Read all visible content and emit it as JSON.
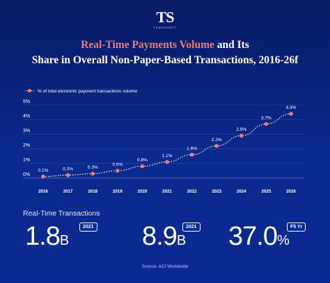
{
  "brand": {
    "logo": "TS",
    "sub": "TEARSHEET"
  },
  "title": {
    "line1_accent": "Real-Time Payments Volume",
    "line1_rest": " and Its",
    "line2": "Share in Overall Non-Paper-Based Transactions, 2016-26f"
  },
  "colors": {
    "background": "#0a2380",
    "line": "#ffffff",
    "marker": "#f37a6b",
    "accent": "#f37a6b"
  },
  "chart_data": {
    "type": "line",
    "title": "",
    "xlabel": "",
    "ylabel": "",
    "legend": {
      "label": "% of total electronic payment transactions volume",
      "position": "top-left"
    },
    "ylim": [
      0,
      5
    ],
    "y_ticks": [
      "0%",
      "1%",
      "2%",
      "3%",
      "4%",
      "5%"
    ],
    "grid": true,
    "categories": [
      "2016",
      "2017",
      "2018",
      "2019",
      "2020",
      "2021",
      "2022",
      "2023",
      "2024",
      "2025",
      "2026"
    ],
    "series": [
      {
        "name": "% of total electronic payment transactions volume",
        "values": [
          0.1,
          0.2,
          0.3,
          0.5,
          0.8,
          1.1,
          1.6,
          2.2,
          2.9,
          3.7,
          4.4
        ],
        "labels": [
          "0.1%",
          "0.2%",
          "0.3%",
          "0.5%",
          "0.8%",
          "1.1%",
          "1.6%",
          "2.2%",
          "2.9%",
          "3.7%",
          "4.4%"
        ]
      }
    ]
  },
  "stats": {
    "section_label": "Real-Time Transactions",
    "items": [
      {
        "value": "1.8",
        "unit": "B",
        "tag": "2021"
      },
      {
        "value": "8.9",
        "unit": "B",
        "tag": "2021"
      },
      {
        "value": "37.0",
        "unit": "%",
        "tag": "F5 Yr"
      }
    ]
  },
  "source": "Source: ACI Worldwide"
}
